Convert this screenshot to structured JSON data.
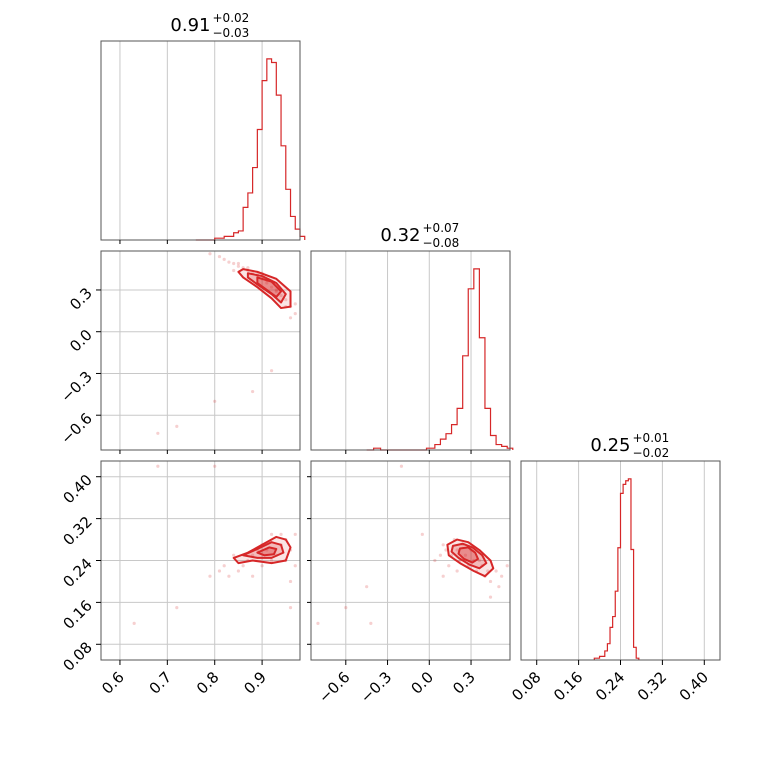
{
  "chart_data": {
    "type": "corner",
    "color": "#d62728",
    "grid": true,
    "parameters": [
      {
        "title": {
          "median": "0.91",
          "plus": "+0.02",
          "minus": "−0.03"
        },
        "range": [
          0.56,
          0.98
        ],
        "ticks": [
          {
            "value": 0.6,
            "label": "0.6"
          },
          {
            "value": 0.7,
            "label": "0.7"
          },
          {
            "value": 0.8,
            "label": "0.8"
          },
          {
            "value": 0.9,
            "label": "0.9"
          }
        ],
        "hist": [
          [
            0.76,
            0.0
          ],
          [
            0.78,
            0.0
          ],
          [
            0.8,
            0.01
          ],
          [
            0.81,
            0.01
          ],
          [
            0.82,
            0.02
          ],
          [
            0.83,
            0.02
          ],
          [
            0.84,
            0.04
          ],
          [
            0.85,
            0.05
          ],
          [
            0.86,
            0.18
          ],
          [
            0.87,
            0.26
          ],
          [
            0.88,
            0.4
          ],
          [
            0.89,
            0.61
          ],
          [
            0.9,
            0.88
          ],
          [
            0.91,
            1.0
          ],
          [
            0.92,
            0.98
          ],
          [
            0.93,
            0.8
          ],
          [
            0.94,
            0.52
          ],
          [
            0.95,
            0.28
          ],
          [
            0.96,
            0.13
          ],
          [
            0.97,
            0.06
          ],
          [
            0.98,
            0.02
          ]
        ]
      },
      {
        "title": {
          "median": "0.32",
          "plus": "+0.07",
          "minus": "−0.08"
        },
        "range": [
          -0.85,
          0.58
        ],
        "ticks": [
          {
            "value": -0.6,
            "label": "−0.6"
          },
          {
            "value": -0.3,
            "label": "−0.3"
          },
          {
            "value": 0.0,
            "label": "0.0"
          },
          {
            "value": 0.3,
            "label": "0.3"
          }
        ],
        "hist": [
          [
            -0.45,
            0.0
          ],
          [
            -0.4,
            0.01
          ],
          [
            -0.35,
            0.0
          ],
          [
            -0.2,
            0.0
          ],
          [
            -0.02,
            0.01
          ],
          [
            0.04,
            0.03
          ],
          [
            0.08,
            0.06
          ],
          [
            0.12,
            0.09
          ],
          [
            0.16,
            0.14
          ],
          [
            0.2,
            0.23
          ],
          [
            0.24,
            0.52
          ],
          [
            0.28,
            0.89
          ],
          [
            0.32,
            1.0
          ],
          [
            0.36,
            0.62
          ],
          [
            0.4,
            0.23
          ],
          [
            0.44,
            0.08
          ],
          [
            0.48,
            0.03
          ],
          [
            0.52,
            0.02
          ],
          [
            0.56,
            0.01
          ]
        ]
      },
      {
        "title": {
          "median": "0.25",
          "plus": "+0.01",
          "minus": "−0.02"
        },
        "range": [
          0.05,
          0.43
        ],
        "ticks": [
          {
            "value": 0.08,
            "label": "0.08"
          },
          {
            "value": 0.16,
            "label": "0.16"
          },
          {
            "value": 0.24,
            "label": "0.24"
          },
          {
            "value": 0.32,
            "label": "0.32"
          },
          {
            "value": 0.4,
            "label": "0.40"
          }
        ],
        "hist": [
          [
            0.19,
            0.01
          ],
          [
            0.2,
            0.02
          ],
          [
            0.21,
            0.05
          ],
          [
            0.215,
            0.09
          ],
          [
            0.22,
            0.18
          ],
          [
            0.225,
            0.24
          ],
          [
            0.23,
            0.38
          ],
          [
            0.235,
            0.62
          ],
          [
            0.24,
            0.92
          ],
          [
            0.245,
            0.97
          ],
          [
            0.25,
            0.99
          ],
          [
            0.255,
            1.0
          ],
          [
            0.26,
            0.61
          ],
          [
            0.265,
            0.07
          ],
          [
            0.27,
            0.01
          ]
        ]
      }
    ],
    "pairs": [
      {
        "x_param": 0,
        "y_param": 1,
        "points": [
          [
            0.79,
            0.56
          ],
          [
            0.81,
            0.54
          ],
          [
            0.82,
            0.52
          ],
          [
            0.83,
            0.5
          ],
          [
            0.84,
            0.49
          ],
          [
            0.85,
            0.47
          ],
          [
            0.86,
            0.46
          ],
          [
            0.87,
            0.44
          ],
          [
            0.88,
            0.42
          ],
          [
            0.89,
            0.4
          ],
          [
            0.9,
            0.38
          ],
          [
            0.91,
            0.35
          ],
          [
            0.92,
            0.32
          ],
          [
            0.93,
            0.29
          ],
          [
            0.94,
            0.26
          ],
          [
            0.95,
            0.23
          ],
          [
            0.96,
            0.18
          ],
          [
            0.97,
            0.13
          ],
          [
            0.95,
            0.18
          ],
          [
            0.93,
            0.3
          ],
          [
            0.91,
            0.37
          ],
          [
            0.89,
            0.41
          ],
          [
            0.87,
            0.46
          ],
          [
            0.85,
            0.49
          ],
          [
            0.92,
            -0.28
          ],
          [
            0.88,
            -0.43
          ],
          [
            0.8,
            -0.5
          ],
          [
            0.72,
            -0.68
          ],
          [
            0.68,
            -0.73
          ],
          [
            0.84,
            0.44
          ],
          [
            0.96,
            0.1
          ],
          [
            0.97,
            0.2
          ],
          [
            0.9,
            0.42
          ]
        ],
        "contours": [
          [
            [
              0.86,
              0.45
            ],
            [
              0.89,
              0.43
            ],
            [
              0.93,
              0.38
            ],
            [
              0.96,
              0.29
            ],
            [
              0.96,
              0.18
            ],
            [
              0.94,
              0.17
            ],
            [
              0.92,
              0.24
            ],
            [
              0.89,
              0.32
            ],
            [
              0.86,
              0.39
            ],
            [
              0.85,
              0.43
            ]
          ],
          [
            [
              0.87,
              0.42
            ],
            [
              0.9,
              0.4
            ],
            [
              0.93,
              0.35
            ],
            [
              0.95,
              0.27
            ],
            [
              0.94,
              0.21
            ],
            [
              0.92,
              0.27
            ],
            [
              0.89,
              0.34
            ],
            [
              0.87,
              0.39
            ]
          ],
          [
            [
              0.89,
              0.39
            ],
            [
              0.92,
              0.36
            ],
            [
              0.94,
              0.29
            ],
            [
              0.93,
              0.25
            ],
            [
              0.91,
              0.3
            ],
            [
              0.89,
              0.35
            ]
          ]
        ]
      },
      {
        "x_param": 0,
        "y_param": 2,
        "points": [
          [
            0.79,
            0.21
          ],
          [
            0.81,
            0.22
          ],
          [
            0.83,
            0.21
          ],
          [
            0.85,
            0.22
          ],
          [
            0.86,
            0.23
          ],
          [
            0.87,
            0.24
          ],
          [
            0.88,
            0.25
          ],
          [
            0.89,
            0.26
          ],
          [
            0.9,
            0.27
          ],
          [
            0.91,
            0.26
          ],
          [
            0.92,
            0.24
          ],
          [
            0.93,
            0.25
          ],
          [
            0.94,
            0.27
          ],
          [
            0.95,
            0.28
          ],
          [
            0.96,
            0.26
          ],
          [
            0.97,
            0.23
          ],
          [
            0.96,
            0.2
          ],
          [
            0.94,
            0.29
          ],
          [
            0.92,
            0.29
          ],
          [
            0.88,
            0.21
          ],
          [
            0.84,
            0.25
          ],
          [
            0.9,
            0.23
          ],
          [
            0.95,
            0.24
          ],
          [
            0.97,
            0.29
          ],
          [
            0.68,
            0.42
          ],
          [
            0.8,
            0.42
          ],
          [
            0.72,
            0.15
          ],
          [
            0.96,
            0.15
          ],
          [
            0.63,
            0.12
          ],
          [
            0.82,
            0.23
          ]
        ],
        "contours": [
          [
            [
              0.84,
              0.245
            ],
            [
              0.87,
              0.255
            ],
            [
              0.9,
              0.27
            ],
            [
              0.93,
              0.285
            ],
            [
              0.95,
              0.28
            ],
            [
              0.96,
              0.265
            ],
            [
              0.95,
              0.24
            ],
            [
              0.92,
              0.235
            ],
            [
              0.88,
              0.24
            ],
            [
              0.85,
              0.235
            ]
          ],
          [
            [
              0.86,
              0.25
            ],
            [
              0.89,
              0.262
            ],
            [
              0.92,
              0.275
            ],
            [
              0.94,
              0.27
            ],
            [
              0.945,
              0.255
            ],
            [
              0.92,
              0.245
            ],
            [
              0.89,
              0.245
            ]
          ],
          [
            [
              0.89,
              0.255
            ],
            [
              0.915,
              0.265
            ],
            [
              0.93,
              0.262
            ],
            [
              0.925,
              0.252
            ],
            [
              0.905,
              0.25
            ]
          ]
        ]
      },
      {
        "x_param": 1,
        "y_param": 2,
        "points": [
          [
            0.04,
            0.24
          ],
          [
            0.08,
            0.25
          ],
          [
            0.1,
            0.27
          ],
          [
            0.12,
            0.26
          ],
          [
            0.14,
            0.23
          ],
          [
            0.16,
            0.25
          ],
          [
            0.18,
            0.28
          ],
          [
            0.2,
            0.26
          ],
          [
            0.22,
            0.24
          ],
          [
            0.24,
            0.27
          ],
          [
            0.26,
            0.25
          ],
          [
            0.28,
            0.23
          ],
          [
            0.3,
            0.26
          ],
          [
            0.32,
            0.24
          ],
          [
            0.34,
            0.22
          ],
          [
            0.36,
            0.24
          ],
          [
            0.38,
            0.23
          ],
          [
            0.4,
            0.21
          ],
          [
            0.42,
            0.22
          ],
          [
            0.44,
            0.2
          ],
          [
            0.48,
            0.22
          ],
          [
            0.52,
            0.21
          ],
          [
            0.56,
            0.23
          ],
          [
            0.5,
            0.19
          ],
          [
            -0.45,
            0.19
          ],
          [
            -0.8,
            0.12
          ],
          [
            -0.6,
            0.15
          ],
          [
            -0.42,
            0.12
          ],
          [
            -0.05,
            0.29
          ],
          [
            -0.2,
            0.42
          ],
          [
            0.44,
            0.17
          ],
          [
            0.2,
            0.22
          ],
          [
            0.1,
            0.21
          ]
        ],
        "contours": [
          [
            [
              0.13,
              0.27
            ],
            [
              0.2,
              0.28
            ],
            [
              0.28,
              0.275
            ],
            [
              0.36,
              0.26
            ],
            [
              0.44,
              0.24
            ],
            [
              0.46,
              0.225
            ],
            [
              0.4,
              0.21
            ],
            [
              0.32,
              0.22
            ],
            [
              0.22,
              0.235
            ],
            [
              0.14,
              0.25
            ]
          ],
          [
            [
              0.17,
              0.268
            ],
            [
              0.24,
              0.272
            ],
            [
              0.31,
              0.265
            ],
            [
              0.38,
              0.25
            ],
            [
              0.41,
              0.235
            ],
            [
              0.36,
              0.225
            ],
            [
              0.29,
              0.232
            ],
            [
              0.21,
              0.245
            ],
            [
              0.16,
              0.257
            ]
          ],
          [
            [
              0.22,
              0.263
            ],
            [
              0.28,
              0.265
            ],
            [
              0.33,
              0.255
            ],
            [
              0.35,
              0.243
            ],
            [
              0.31,
              0.236
            ],
            [
              0.25,
              0.243
            ],
            [
              0.21,
              0.253
            ]
          ]
        ]
      }
    ]
  }
}
